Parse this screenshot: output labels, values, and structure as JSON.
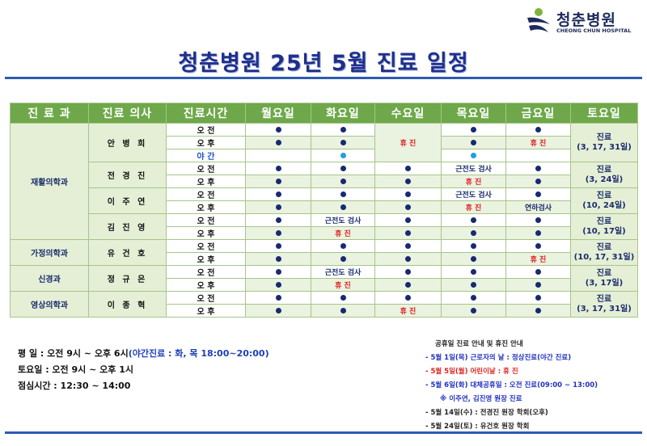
{
  "logo": {
    "name": "청춘병원",
    "english": "CHEONG CHUN HOSPITAL"
  },
  "title": "청춘병원 25년 5월 진료 일정",
  "table": {
    "headers": [
      "진 료 과",
      "진료 의사",
      "진료시간",
      "월요일",
      "화요일",
      "수요일",
      "목요일",
      "금요일",
      "토요일"
    ],
    "departments": [
      "재활의학과",
      "가정의학과",
      "신경과",
      "영상의학과"
    ],
    "doctors": [
      "안 병 희",
      "전 경 진",
      "이 주 연",
      "김 진 영",
      "유 건 호",
      "정 규 은",
      "이 종 혁"
    ],
    "am": "오 전",
    "pm": "오 후",
    "night": "야 간",
    "off": "휴 진",
    "emg": "근전도 검사",
    "swallow": "연하검사",
    "sat": [
      {
        "l1": "진료",
        "l2": "(3, 17, 31일)"
      },
      {
        "l1": "진료",
        "l2": "(3, 24일)"
      },
      {
        "l1": "진료",
        "l2": "(10, 24일)"
      },
      {
        "l1": "진료",
        "l2": "(10, 17일)"
      },
      {
        "l1": "진료",
        "l2": "(10, 17, 31일)"
      },
      {
        "l1": "진료",
        "l2": "(3, 17일)"
      },
      {
        "l1": "진료",
        "l2": "(3, 17, 31일)"
      }
    ]
  },
  "hours": {
    "weekday": "평   일 : 오전 9시 ~ 오후 6시",
    "weekday_night": "(야간진료 : 화, 목 18:00~20:00)",
    "saturday": "토요일 : 오전 9시 ~ 오후 1시",
    "lunch": "점심시간 : 12:30 ~ 14:00"
  },
  "notice": {
    "title": "공휴일 진료 안내 및 휴진 안내",
    "items": [
      "- 5월 1일(목) 근로자의 날 : 정상진료(야간 진료)",
      "- 5월 5일(월) 어린이날 : 휴 진",
      "- 5월 6일(화) 대체공휴일 : 오전 진료(09:00 ~ 13:00)",
      "※ 이주연, 김진영 원장 진료",
      "- 5월 14일(수) : 전경진 원장 학회(오후)",
      "- 5월 24일(토) : 유건호 원장 학회"
    ]
  },
  "colors": {
    "header_green": "#6ea84a",
    "navy": "#1e2f8c",
    "red": "#e02020",
    "dot": "#182a70",
    "night_dot": "#1ea0dc"
  }
}
